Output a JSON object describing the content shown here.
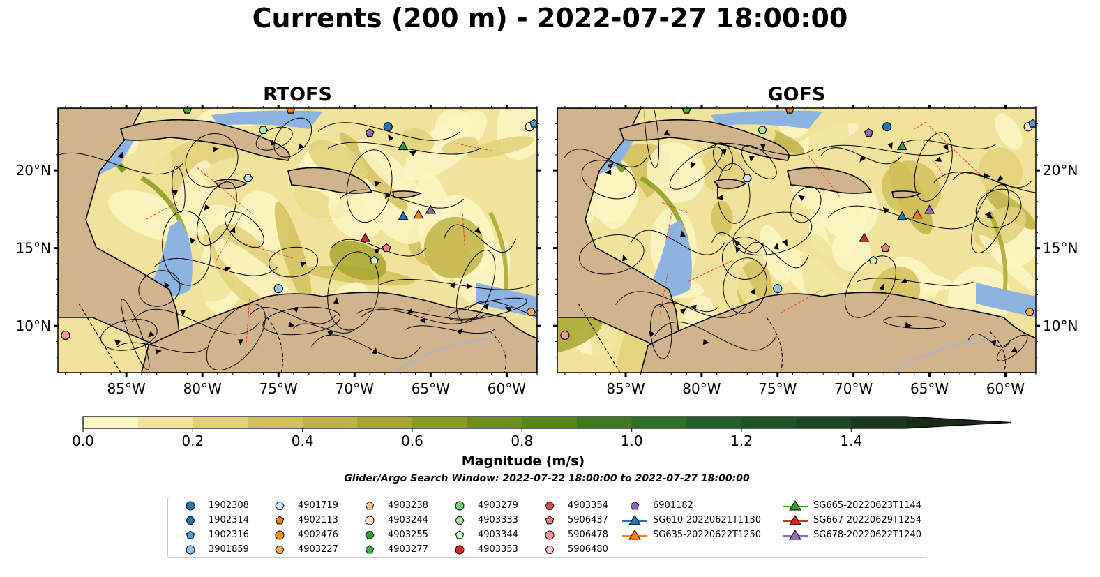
{
  "title": "Currents (200 m) - 2022-07-27 18:00:00",
  "panels": [
    {
      "title": "RTOFS"
    },
    {
      "title": "GOFS"
    }
  ],
  "axes": {
    "lon_ticks": [
      "85°W",
      "80°W",
      "75°W",
      "70°W",
      "65°W",
      "60°W"
    ],
    "lat_ticks": [
      "20°N",
      "15°N",
      "10°N"
    ],
    "lon_range": [
      -89.5,
      -58.0
    ],
    "lat_range": [
      7.0,
      24.0
    ]
  },
  "colorbar": {
    "label": "Magnitude (m/s)",
    "ticks": [
      "0.0",
      "0.2",
      "0.4",
      "0.6",
      "0.8",
      "1.0",
      "1.2",
      "1.4"
    ],
    "range": [
      0.0,
      1.5
    ],
    "colors": [
      "#fdf6c3",
      "#f1e39b",
      "#e2d17a",
      "#d3c05c",
      "#c0b345",
      "#a9a630",
      "#8a9c1f",
      "#6e9018",
      "#55851a",
      "#3f7b1e",
      "#2e6f26",
      "#1f6128",
      "#1a5427",
      "#1b4524",
      "#1c3720",
      "#1a2b19"
    ]
  },
  "search_window": "Glider/Argo Search Window: 2022-07-22 18:00:00 to 2022-07-27 18:00:00",
  "legend": [
    {
      "label": "1902308",
      "marker": "circle",
      "color": "#1f77b4"
    },
    {
      "label": "1902314",
      "marker": "hexagon",
      "color": "#1f77b4"
    },
    {
      "label": "1902316",
      "marker": "pentagon",
      "color": "#4c9bd6"
    },
    {
      "label": "3901859",
      "marker": "circle",
      "color": "#8fc3ea"
    },
    {
      "label": "4901719",
      "marker": "hexagon",
      "color": "#c9e6f7"
    },
    {
      "label": "4902113",
      "marker": "pentagon",
      "color": "#ff7f0e"
    },
    {
      "label": "4902476",
      "marker": "circle",
      "color": "#ff8c1a"
    },
    {
      "label": "4903227",
      "marker": "hexagon",
      "color": "#ffa552"
    },
    {
      "label": "4903238",
      "marker": "pentagon",
      "color": "#ffc48a"
    },
    {
      "label": "4903244",
      "marker": "circle",
      "color": "#ffe0c2"
    },
    {
      "label": "4903255",
      "marker": "hexagon",
      "color": "#2ca02c"
    },
    {
      "label": "4903277",
      "marker": "pentagon",
      "color": "#3cb43c"
    },
    {
      "label": "4903279",
      "marker": "circle",
      "color": "#6fd36f"
    },
    {
      "label": "4903333",
      "marker": "hexagon",
      "color": "#a8e6a0"
    },
    {
      "label": "4903344",
      "marker": "pentagon",
      "color": "#d4f5cc"
    },
    {
      "label": "4903353",
      "marker": "circle",
      "color": "#d62728"
    },
    {
      "label": "4903354",
      "marker": "hexagon",
      "color": "#e0474c"
    },
    {
      "label": "5906437",
      "marker": "pentagon",
      "color": "#f07b7b"
    },
    {
      "label": "5906478",
      "marker": "circle",
      "color": "#f59a9a"
    },
    {
      "label": "5906480",
      "marker": "hexagon",
      "color": "#fbc7c7"
    },
    {
      "label": "6901182",
      "marker": "pentagon",
      "color": "#9467bd"
    },
    {
      "label": "SG610-20220621T1130",
      "marker": "triangle",
      "color": "#1f77b4"
    },
    {
      "label": "SG635-20220622T1250",
      "marker": "triangle",
      "color": "#ff7f0e"
    },
    {
      "label": "SG665-20220623T1144",
      "marker": "triangle",
      "color": "#2ca02c"
    },
    {
      "label": "SG667-20220629T1254",
      "marker": "triangle",
      "color": "#d62728"
    },
    {
      "label": "SG678-20220622T1240",
      "marker": "triangle",
      "color": "#9467bd"
    }
  ],
  "observations": [
    {
      "id": "1902308",
      "lon": -67.8,
      "lat": 22.8
    },
    {
      "id": "4903244",
      "lon": -58.5,
      "lat": 22.8
    },
    {
      "id": "1902316",
      "lon": -58.2,
      "lat": 23.0
    },
    {
      "id": "4903333",
      "lon": -76.0,
      "lat": 22.6
    },
    {
      "id": "6901182",
      "lon": -69.0,
      "lat": 22.4
    },
    {
      "id": "4903277",
      "lon": -81.0,
      "lat": 23.9
    },
    {
      "id": "4902113",
      "lon": -74.2,
      "lat": 23.9
    },
    {
      "id": "4901719",
      "lon": -77.0,
      "lat": 19.5
    },
    {
      "id": "3901859",
      "lon": -75.0,
      "lat": 12.4
    },
    {
      "id": "4903344",
      "lon": -68.7,
      "lat": 14.2
    },
    {
      "id": "5906437",
      "lon": -67.9,
      "lat": 15.0
    },
    {
      "id": "5906478",
      "lon": -89.0,
      "lat": 9.4
    },
    {
      "id": "4903227",
      "lon": -58.4,
      "lat": 10.9
    },
    {
      "id": "SG665-20220623T1144",
      "lon": -66.8,
      "lat": 21.5
    },
    {
      "id": "SG610-20220621T1130",
      "lon": -66.8,
      "lat": 17.0
    },
    {
      "id": "SG635-20220622T1250",
      "lon": -65.8,
      "lat": 17.1
    },
    {
      "id": "SG678-20220622T1240",
      "lon": -65.0,
      "lat": 17.4
    },
    {
      "id": "SG667-20220629T1254",
      "lon": -69.3,
      "lat": 15.6
    }
  ]
}
